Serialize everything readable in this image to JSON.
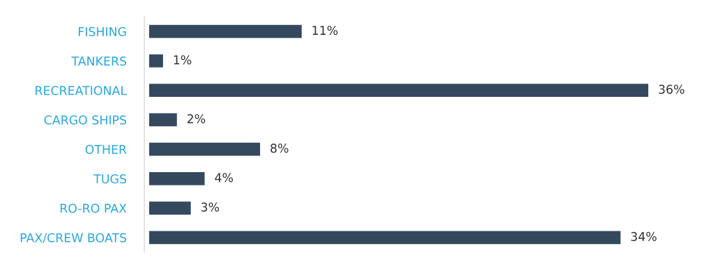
{
  "chart_data": {
    "type": "bar",
    "orientation": "horizontal",
    "categories": [
      "FISHING",
      "TANKERS",
      "RECREATIONAL",
      "CARGO SHIPS",
      "OTHER",
      "TUGS",
      "RO-RO PAX",
      "PAX/CREW BOATS"
    ],
    "values": [
      11,
      1,
      36,
      2,
      8,
      4,
      3,
      34
    ],
    "value_labels": [
      "11%",
      "1%",
      "36%",
      "2%",
      "8%",
      "4%",
      "3%",
      "34%"
    ],
    "color": "#34495e",
    "grid": false,
    "legend": false,
    "tick_labels": "y"
  }
}
